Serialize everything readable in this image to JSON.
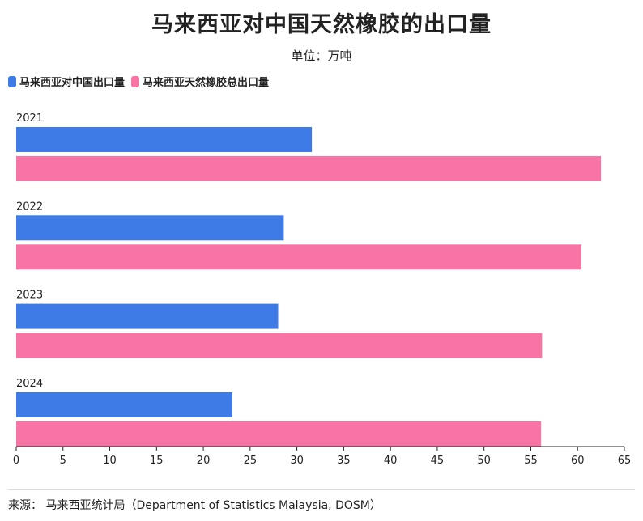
{
  "title": "马来西亚对中国天然橡胶的出口量",
  "subtitle": "单位：万吨",
  "source": "来源： 马来西亚统计局（Department of Statistics Malaysia, DOSM）",
  "chart_data": {
    "type": "bar",
    "orientation": "horizontal",
    "categories": [
      "2021",
      "2022",
      "2023",
      "2024"
    ],
    "series": [
      {
        "name": "马来西亚对中国出口量",
        "color": "#3f7be6",
        "values": [
          31.6,
          28.6,
          28.0,
          23.1
        ]
      },
      {
        "name": "马来西亚天然橡胶总出口量",
        "color": "#f874a4",
        "values": [
          62.5,
          60.4,
          56.2,
          56.1
        ]
      }
    ],
    "xlim": [
      0,
      65
    ],
    "xticks": [
      "0",
      "5",
      "10",
      "15",
      "20",
      "25",
      "30",
      "35",
      "40",
      "45",
      "50",
      "55",
      "60",
      "65"
    ],
    "legend_position": "top-left",
    "grid": false
  }
}
